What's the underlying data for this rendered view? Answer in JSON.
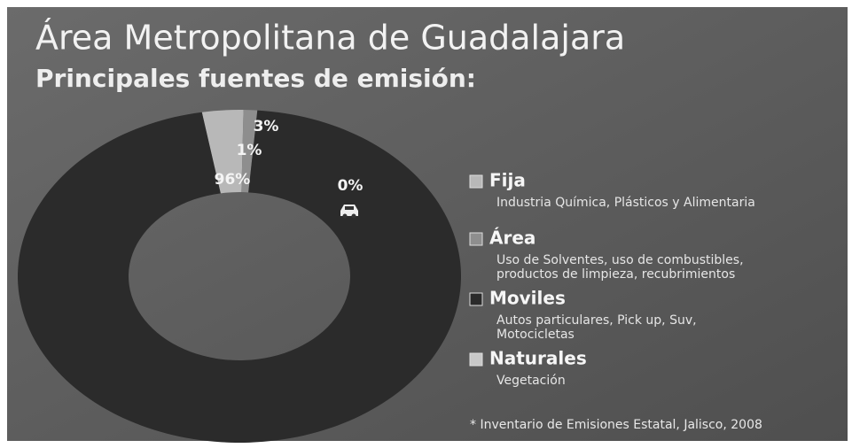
{
  "chart_data": {
    "type": "pie",
    "donut": true,
    "title": "Área Metropolitana de Guadalajara",
    "subtitle": "Principales fuentes de emisión:",
    "categories": [
      "Fija",
      "Área",
      "Moviles",
      "Naturales"
    ],
    "values": [
      3,
      1,
      96,
      0
    ],
    "value_labels": [
      "3%",
      "1%",
      "96%",
      "0%"
    ],
    "colors": [
      "#b8b8b8",
      "#8e8e8e",
      "#2b2b2b",
      "#c8c8c8"
    ],
    "descriptions": [
      [
        "Industria Química, Plásticos y Alimentaria"
      ],
      [
        "Uso de Solventes, uso de combustibles,",
        "productos de limpieza, recubrimientos"
      ],
      [
        "Autos particulares, Pick up, Suv,",
        "Motocicletas"
      ],
      [
        "Vegetación"
      ]
    ],
    "note": "* Inventario de Emisiones Estatal, Jalisco, 2008"
  }
}
